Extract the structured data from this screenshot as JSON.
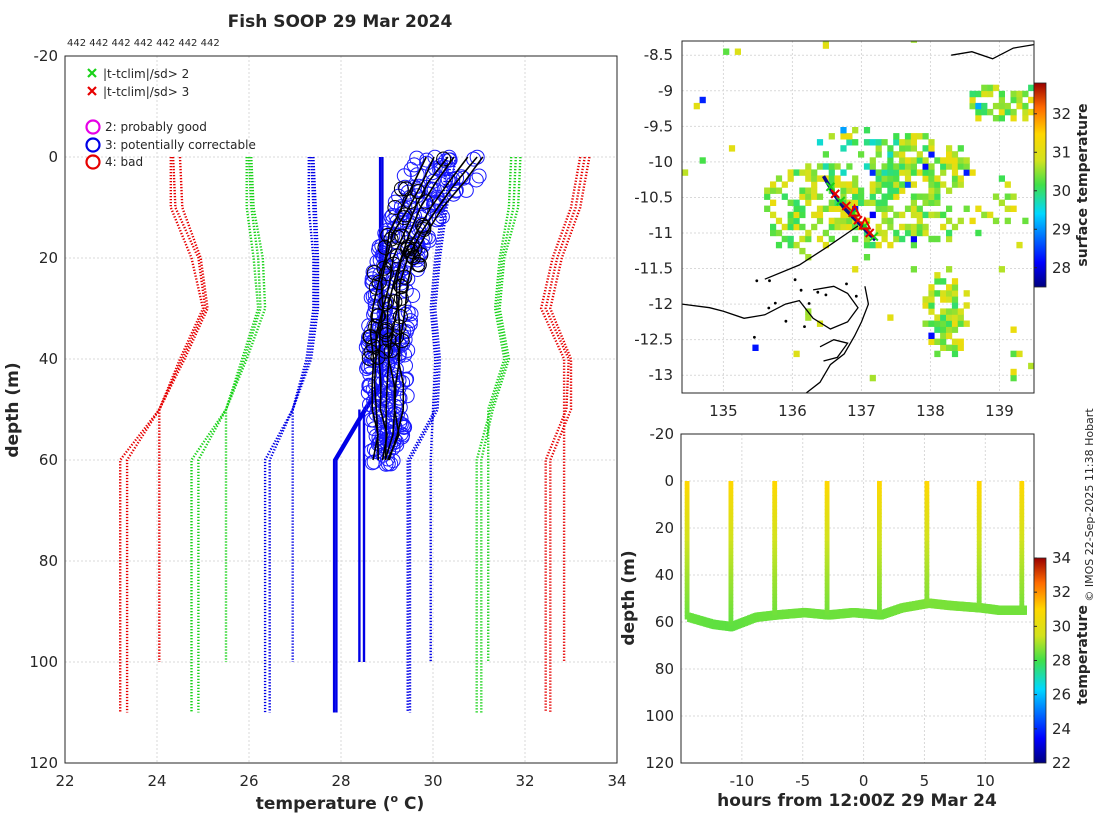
{
  "title": "Fish SOOP 29 Mar 2024",
  "counts_label": "442 442 442 442 442 442 442",
  "legend": {
    "x_green": "|t-tclim|/sd> 2",
    "x_red": "|t-tclim|/sd> 3",
    "flag2": "2: probably good",
    "flag3": "3: potentially correctable",
    "flag4": "4: bad"
  },
  "credit": "© IMOS 22-Sep-2025 11:38 Hobart",
  "colors": {
    "red": "#e60000",
    "green": "#19d219",
    "blue": "#0000e6",
    "magenta": "#e600e6",
    "black": "#000000"
  },
  "chart_data": [
    {
      "type": "line",
      "name": "profile",
      "xlabel": "temperature (",
      "xlabel_sup": "o",
      "xlabel_tail": " C)",
      "ylabel": "depth (m)",
      "xlim": [
        22,
        34
      ],
      "ylim": [
        -20,
        120
      ],
      "xticks": [
        "22",
        "24",
        "26",
        "28",
        "30",
        "32",
        "34"
      ],
      "yticks": [
        "-20",
        "0",
        "20",
        "40",
        "60",
        "80",
        "100",
        "120"
      ],
      "depth": [
        0,
        5,
        10,
        15,
        20,
        25,
        30,
        35,
        40,
        45,
        50,
        55,
        60
      ],
      "profile_min": [
        29.6,
        29.3,
        29.1,
        28.9,
        28.75,
        28.65,
        28.6,
        28.55,
        28.55,
        28.55,
        28.6,
        28.65,
        28.65
      ],
      "profile_max": [
        31.4,
        30.9,
        30.4,
        30.0,
        29.75,
        29.6,
        29.55,
        29.5,
        29.45,
        29.45,
        29.45,
        29.4,
        29.15
      ],
      "climatology": [
        {
          "name": "clim_mean_minus_3sd",
          "color": "red",
          "depth": [
            0,
            10,
            20,
            30,
            40,
            50,
            60,
            100,
            110
          ],
          "curves": [
            [
              24.3,
              24.3,
              24.75,
              25.0,
              24.5,
              24.05,
              24.05,
              24.05,
              null
            ],
            [
              24.35,
              24.4,
              24.9,
              25.05,
              24.55,
              24.05,
              23.2,
              23.2,
              23.2
            ],
            [
              24.5,
              24.55,
              24.95,
              25.1,
              24.6,
              24.05,
              23.35,
              23.35,
              23.35
            ]
          ]
        },
        {
          "name": "clim_mean_minus_2sd",
          "color": "green",
          "depth": [
            0,
            10,
            20,
            30,
            40,
            50,
            60,
            100,
            110
          ],
          "curves": [
            [
              25.95,
              25.95,
              26.1,
              26.2,
              25.85,
              25.5,
              25.5,
              25.5,
              null
            ],
            [
              26.0,
              26.05,
              26.2,
              26.25,
              25.9,
              25.5,
              24.75,
              24.75,
              24.75
            ],
            [
              26.05,
              26.1,
              26.3,
              26.35,
              25.95,
              25.5,
              24.9,
              24.9,
              24.9
            ]
          ]
        },
        {
          "name": "clim_mean_minus_1sd",
          "color": "blue",
          "depth": [
            0,
            10,
            20,
            30,
            40,
            50,
            60,
            100,
            110
          ],
          "curves": [
            [
              27.3,
              27.3,
              27.4,
              27.4,
              27.25,
              26.95,
              26.95,
              26.95,
              null
            ],
            [
              27.35,
              27.4,
              27.45,
              27.45,
              27.3,
              26.95,
              26.35,
              26.35,
              26.35
            ],
            [
              27.4,
              27.45,
              27.5,
              27.5,
              27.35,
              26.95,
              26.45,
              26.45,
              26.45
            ]
          ]
        },
        {
          "name": "clim_mean_plus_1sd",
          "color": "blue",
          "depth": [
            0,
            10,
            20,
            30,
            40,
            50,
            60,
            100,
            110
          ],
          "curves": [
            [
              30.3,
              30.2,
              30.05,
              29.95,
              30.05,
              30.0,
              29.95,
              29.95,
              null
            ],
            [
              30.4,
              30.25,
              30.1,
              30.0,
              30.1,
              30.05,
              29.45,
              29.45,
              29.45
            ],
            [
              30.5,
              30.3,
              30.15,
              30.05,
              30.15,
              30.1,
              29.5,
              29.5,
              29.5
            ]
          ]
        },
        {
          "name": "clim_mean_plus_2sd",
          "color": "green",
          "depth": [
            0,
            10,
            20,
            30,
            40,
            50,
            60,
            100,
            110
          ],
          "curves": [
            [
              31.7,
              31.65,
              31.45,
              31.35,
              31.55,
              31.2,
              31.2,
              31.2,
              null
            ],
            [
              31.8,
              31.75,
              31.5,
              31.4,
              31.6,
              31.25,
              30.95,
              30.95,
              30.95
            ],
            [
              31.9,
              31.85,
              31.55,
              31.45,
              31.65,
              31.3,
              31.05,
              31.05,
              31.05
            ]
          ]
        },
        {
          "name": "clim_mean_plus_3sd",
          "color": "red",
          "depth": [
            0,
            10,
            20,
            30,
            40,
            50,
            60,
            100,
            110
          ],
          "curves": [
            [
              33.2,
              33.0,
              32.6,
              32.35,
              32.85,
              32.85,
              32.85,
              32.85,
              null
            ],
            [
              33.3,
              33.1,
              32.7,
              32.45,
              32.95,
              32.9,
              32.45,
              32.45,
              32.45
            ],
            [
              33.4,
              33.2,
              32.8,
              32.55,
              33.0,
              33.0,
              32.55,
              32.55,
              32.55
            ]
          ]
        }
      ],
      "blue_bands": [
        {
          "depth": [
            0,
            45,
            50,
            60,
            110
          ],
          "temp": [
            28.85,
            28.85,
            28.5,
            27.85,
            27.85
          ]
        },
        {
          "depth": [
            0,
            45,
            50,
            60,
            110
          ],
          "temp": [
            28.9,
            28.9,
            28.55,
            27.9,
            27.9
          ]
        },
        {
          "depth": [
            50,
            100
          ],
          "temp": [
            28.4,
            28.4
          ]
        },
        {
          "depth": [
            50,
            100
          ],
          "temp": [
            28.5,
            28.5
          ]
        }
      ]
    },
    {
      "type": "heatmap",
      "name": "surface_temperature_map",
      "colorbar_label": "surface temperature",
      "xlim": [
        134.4,
        139.5
      ],
      "ylim": [
        -13.25,
        -8.3
      ],
      "xticks": [
        "135",
        "136",
        "137",
        "138",
        "139"
      ],
      "yticks": [
        "-8.5",
        "-9",
        "-9.5",
        "-10",
        "-10.5",
        "-11",
        "-11.5",
        "-12",
        "-12.5",
        "-13"
      ],
      "colorbar_ticks": [
        "28",
        "29",
        "30",
        "31",
        "32"
      ],
      "clim": [
        27.5,
        32.8
      ],
      "track_lon": [
        136.45,
        136.6,
        136.75,
        136.9,
        137.05,
        137.2
      ],
      "track_lat": [
        -10.2,
        -10.45,
        -10.65,
        -10.8,
        -10.95,
        -11.1
      ],
      "red_x_lon": [
        136.62,
        136.78,
        136.95,
        137.12
      ],
      "red_x_lat": [
        -10.45,
        -10.62,
        -10.82,
        -11.0
      ],
      "green_x_lon": [
        136.55,
        136.7,
        136.88,
        137.05,
        137.18
      ],
      "green_x_lat": [
        -10.35,
        -10.55,
        -10.72,
        -10.9,
        -11.05
      ]
    },
    {
      "type": "scatter",
      "name": "time_depth_section",
      "xlabel": "hours from 12:00Z 29 Mar 24",
      "ylabel": "depth (m)",
      "colorbar_label": "temperature",
      "xlim": [
        -15,
        14
      ],
      "ylim": [
        -20,
        120
      ],
      "xticks": [
        "-10",
        "-5",
        "0",
        "5",
        "10"
      ],
      "yticks": [
        "-20",
        "0",
        "20",
        "40",
        "60",
        "80",
        "100",
        "120"
      ],
      "colorbar_ticks": [
        "22",
        "24",
        "26",
        "28",
        "30",
        "32",
        "34"
      ],
      "clim": [
        22,
        34
      ],
      "cast_hours": [
        -14.5,
        -10.9,
        -7.3,
        -3.0,
        1.3,
        5.2,
        9.5,
        13.0
      ],
      "bottom_hours": [
        -14.5,
        -12.5,
        -11.0,
        -9,
        -7.3,
        -5,
        -3.0,
        -1,
        1.3,
        3,
        5.2,
        7,
        9.5,
        11,
        13.0
      ],
      "bottom_depth": [
        58,
        61,
        62,
        58,
        57,
        56,
        57,
        56,
        57,
        54,
        52,
        53,
        54,
        55,
        55
      ]
    }
  ]
}
